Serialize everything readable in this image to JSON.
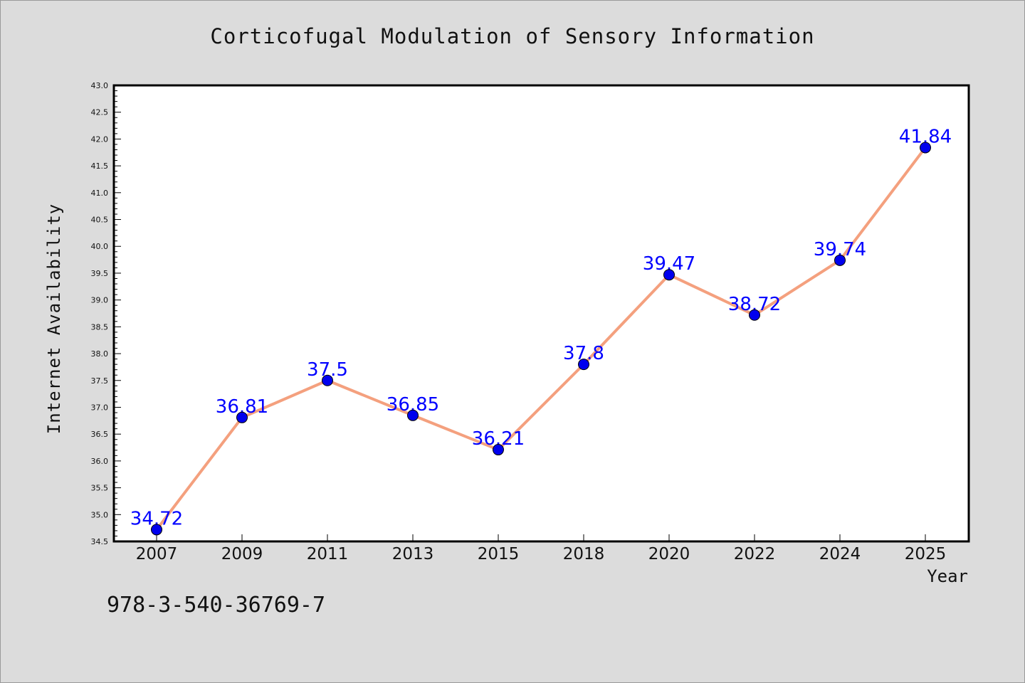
{
  "chart_data": {
    "type": "line",
    "title": "Corticofugal Modulation of Sensory Information",
    "xlabel": "Year",
    "ylabel": "Internet Availability",
    "categories": [
      "2007",
      "2009",
      "2011",
      "2013",
      "2015",
      "2018",
      "2020",
      "2022",
      "2024",
      "2025"
    ],
    "series": [
      {
        "values": [
          34.72,
          36.81,
          37.5,
          36.85,
          36.21,
          37.8,
          39.47,
          38.72,
          39.74,
          41.84
        ]
      }
    ],
    "data_labels": [
      "34.72",
      "36.81",
      "37.5",
      "36.85",
      "36.21",
      "37.8",
      "39.47",
      "38.72",
      "39.74",
      "41.84"
    ],
    "ylim": [
      34.5,
      43.0
    ],
    "yticks": [
      "34.5",
      "35.0",
      "35.5",
      "36.0",
      "36.5",
      "37.0",
      "37.5",
      "38.0",
      "38.5",
      "39.0",
      "39.5",
      "40.0",
      "40.5",
      "41.0",
      "41.5",
      "42.0",
      "42.5",
      "43.0"
    ],
    "grid": false,
    "colors": {
      "line": "#f4a07e",
      "marker": "#0000ee",
      "label": "#0000ff",
      "plot_bg": "#ffffff",
      "page_bg": "#dcdcdc"
    }
  },
  "footer": {
    "isbn": "978-3-540-36769-7"
  }
}
